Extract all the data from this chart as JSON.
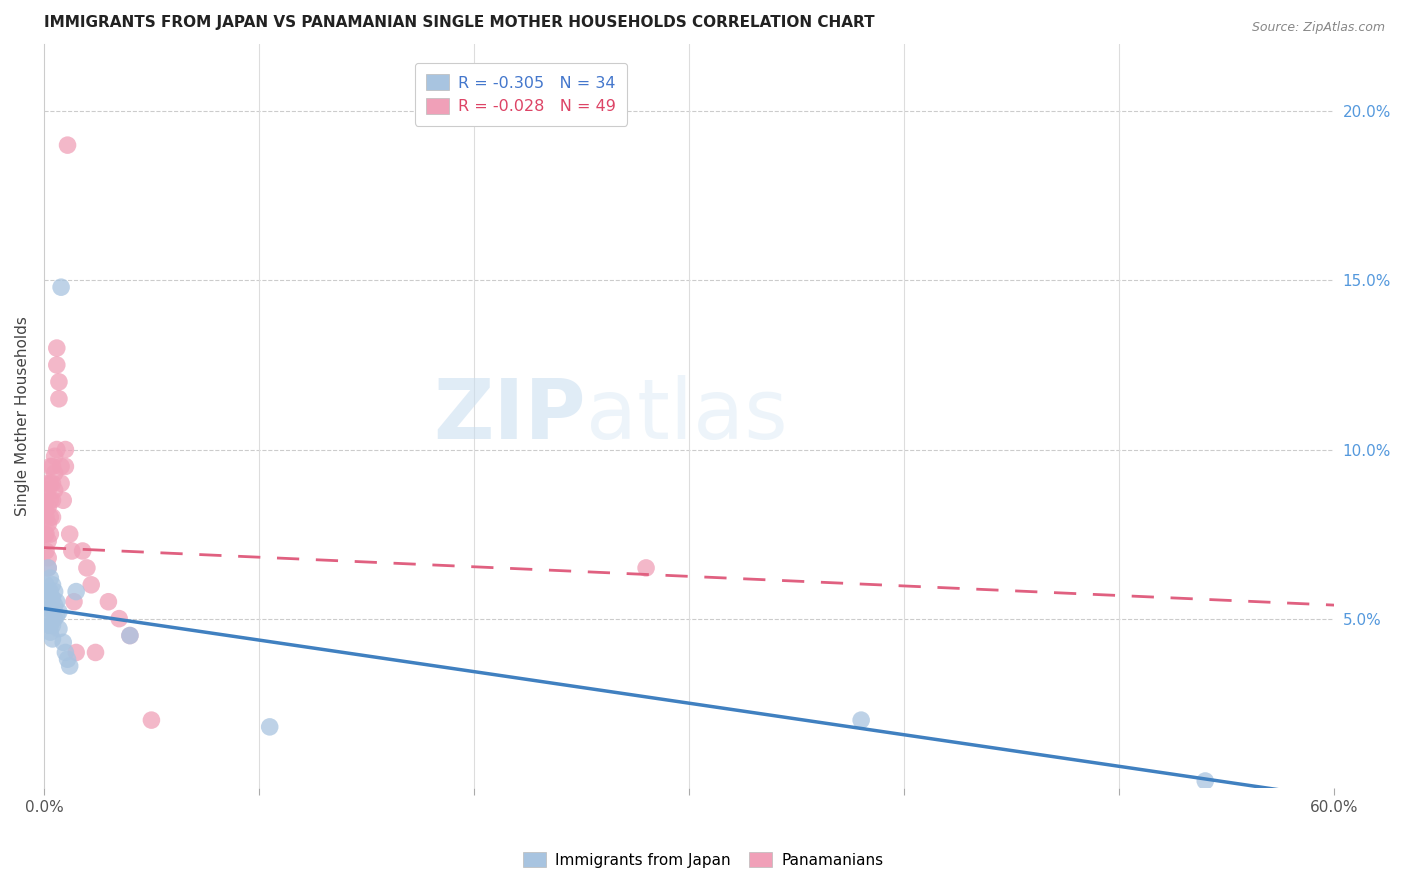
{
  "title": "IMMIGRANTS FROM JAPAN VS PANAMANIAN SINGLE MOTHER HOUSEHOLDS CORRELATION CHART",
  "source": "Source: ZipAtlas.com",
  "ylabel": "Single Mother Households",
  "right_yticks": [
    "20.0%",
    "15.0%",
    "10.0%",
    "5.0%"
  ],
  "right_ytick_vals": [
    0.2,
    0.15,
    0.1,
    0.05
  ],
  "legend_line1_r": "R = -0.305",
  "legend_line1_n": "N = 34",
  "legend_line2_r": "R = -0.028",
  "legend_line2_n": "N = 49",
  "color_blue": "#a8c4e0",
  "color_pink": "#f0a0b8",
  "line_blue": "#4080c0",
  "line_pink": "#e06080",
  "background": "#ffffff",
  "japan_x": [
    0.001,
    0.001,
    0.001,
    0.002,
    0.002,
    0.002,
    0.002,
    0.003,
    0.003,
    0.003,
    0.003,
    0.003,
    0.004,
    0.004,
    0.004,
    0.004,
    0.004,
    0.005,
    0.005,
    0.005,
    0.006,
    0.006,
    0.007,
    0.007,
    0.008,
    0.009,
    0.01,
    0.011,
    0.012,
    0.015,
    0.04,
    0.105,
    0.38,
    0.54
  ],
  "japan_y": [
    0.06,
    0.055,
    0.05,
    0.065,
    0.058,
    0.053,
    0.048,
    0.062,
    0.058,
    0.053,
    0.048,
    0.046,
    0.06,
    0.056,
    0.052,
    0.048,
    0.044,
    0.058,
    0.054,
    0.05,
    0.055,
    0.051,
    0.052,
    0.047,
    0.148,
    0.043,
    0.04,
    0.038,
    0.036,
    0.058,
    0.045,
    0.018,
    0.02,
    0.002
  ],
  "panama_x": [
    0.0005,
    0.0005,
    0.001,
    0.001,
    0.001,
    0.001,
    0.001,
    0.002,
    0.002,
    0.002,
    0.002,
    0.002,
    0.002,
    0.003,
    0.003,
    0.003,
    0.003,
    0.003,
    0.004,
    0.004,
    0.004,
    0.004,
    0.005,
    0.005,
    0.005,
    0.006,
    0.006,
    0.006,
    0.007,
    0.007,
    0.008,
    0.008,
    0.009,
    0.01,
    0.01,
    0.011,
    0.012,
    0.013,
    0.014,
    0.015,
    0.018,
    0.02,
    0.022,
    0.024,
    0.03,
    0.035,
    0.04,
    0.05,
    0.28
  ],
  "panama_y": [
    0.082,
    0.075,
    0.09,
    0.085,
    0.08,
    0.075,
    0.07,
    0.088,
    0.083,
    0.078,
    0.073,
    0.068,
    0.065,
    0.095,
    0.09,
    0.085,
    0.08,
    0.075,
    0.095,
    0.09,
    0.085,
    0.08,
    0.098,
    0.093,
    0.088,
    0.13,
    0.125,
    0.1,
    0.12,
    0.115,
    0.095,
    0.09,
    0.085,
    0.1,
    0.095,
    0.19,
    0.075,
    0.07,
    0.055,
    0.04,
    0.07,
    0.065,
    0.06,
    0.04,
    0.055,
    0.05,
    0.045,
    0.02,
    0.065
  ],
  "xlim": [
    0.0,
    0.6
  ],
  "ylim": [
    0.0,
    0.22
  ],
  "japan_line_x": [
    0.0,
    0.6
  ],
  "japan_line_y": [
    0.053,
    -0.003
  ],
  "panama_line_x": [
    0.0,
    0.6
  ],
  "panama_line_y": [
    0.071,
    0.054
  ]
}
